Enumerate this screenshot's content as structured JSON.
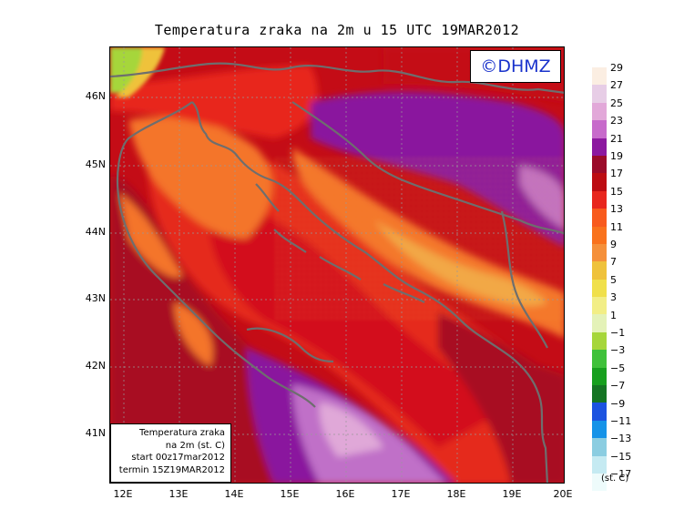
{
  "title": "Temperatura zraka na 2m u 15 UTC 19MAR2012",
  "copyright": "©DHMZ",
  "info": {
    "line1": "Temperatura zraka",
    "line2": "na 2m (st. C)",
    "line3": "start 00z17mar2012",
    "line4": "termin 15Z19MAR2012"
  },
  "y_ticks": [
    "46N",
    "45N",
    "44N",
    "43N",
    "42N",
    "41N"
  ],
  "x_ticks": [
    "12E",
    "13E",
    "14E",
    "15E",
    "16E",
    "17E",
    "18E",
    "19E",
    "20E"
  ],
  "legend": {
    "unit": "(st. C)",
    "labels": [
      "29",
      "27",
      "25",
      "23",
      "21",
      "19",
      "17",
      "15",
      "13",
      "11",
      "9",
      "7",
      "5",
      "3",
      "1",
      "−1",
      "−3",
      "−5",
      "−7",
      "−9",
      "−11",
      "−13",
      "−15",
      "−17"
    ],
    "colors": [
      "#fbeee2",
      "#e7cde6",
      "#e2a8d9",
      "#c76acb",
      "#8c18a0",
      "#9b0b2a",
      "#bc0c12",
      "#e8261e",
      "#f85a1d",
      "#f9721c",
      "#f5903a",
      "#efc23b",
      "#f0e04a",
      "#f2ee86",
      "#e4f2b8",
      "#a6d63a",
      "#3fc13a",
      "#17a01e",
      "#157523",
      "#1c53e0",
      "#1593e8",
      "#8bcde1",
      "#c5eaf2",
      "#eefbfb"
    ]
  },
  "map": {
    "lon_range": [
      11.75,
      20.0
    ],
    "lat_range": [
      40.3,
      46.75
    ],
    "colors": {
      "sea_warm": "#d3101a",
      "sea": "#c40c16",
      "land_dark": "#a80c24",
      "mountain_orange": "#f4742a",
      "mountain_yellow": "#f2a946",
      "purple": "#8a189e",
      "lavender": "#c070c8",
      "pink": "#e0a8d8",
      "coast": "#6e6e6e"
    }
  }
}
